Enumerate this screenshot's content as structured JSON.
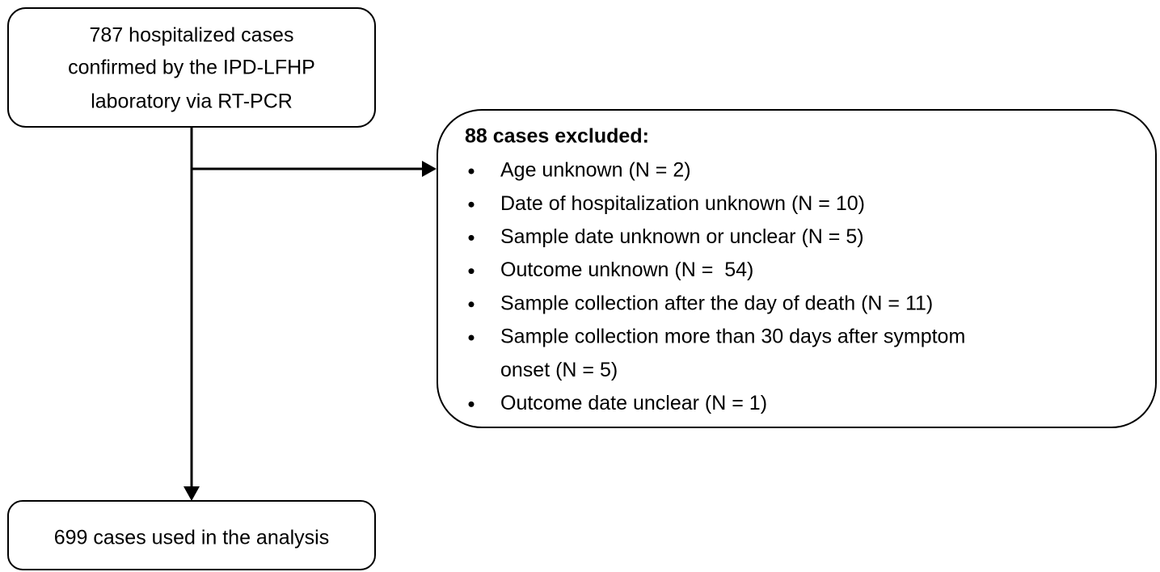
{
  "start": {
    "lines": [
      "787 hospitalized cases",
      "confirmed by the IPD-LFHP",
      "laboratory via RT-PCR"
    ]
  },
  "exclusion": {
    "title": "88 cases excluded:",
    "items": [
      [
        "Age unknown (N = 2)"
      ],
      [
        "Date of hospitalization unknown (N = 10)"
      ],
      [
        "Sample date unknown or unclear (N = 5)"
      ],
      [
        "Outcome unknown (N =  54)"
      ],
      [
        "Sample collection after the day of death (N = 11)"
      ],
      [
        "Sample collection more than 30 days after symptom",
        "onset (N = 5)"
      ],
      [
        "Outcome date unclear (N = 1)"
      ]
    ]
  },
  "result": {
    "lines": [
      "699 cases used in the analysis"
    ]
  }
}
